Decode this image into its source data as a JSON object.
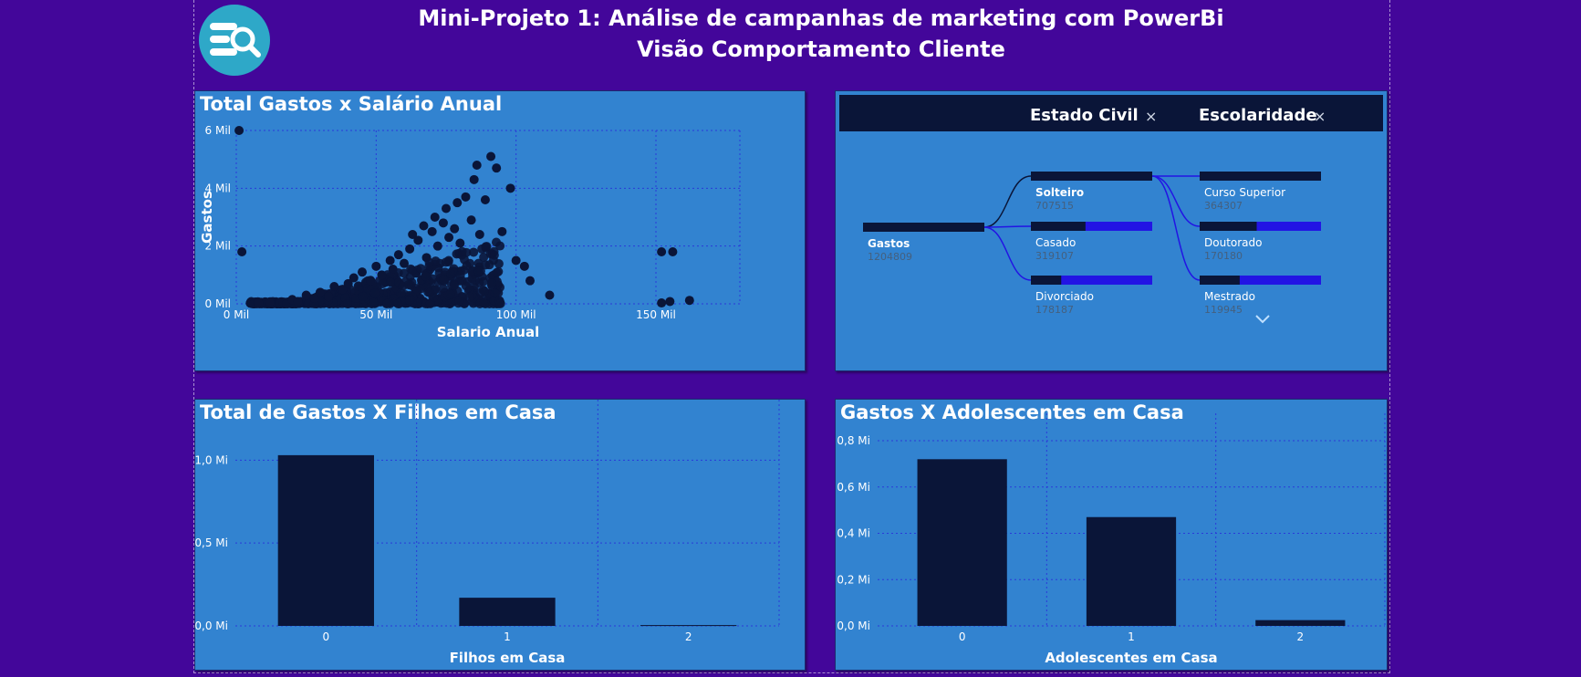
{
  "header": {
    "title_line1": "Mini-Projeto 1: Análise de campanhas de marketing com PowerBi",
    "title_line2": "Visão Comportamento Cliente",
    "logo_icon": "search-list-icon"
  },
  "colors": {
    "page_bg": "#43069a",
    "panel_bg": "#3283d0",
    "dark_navy": "#0a1538",
    "accent_blue": "#2214e4",
    "grid": "#2a3ad8"
  },
  "scatter": {
    "title": "Total Gastos x Salário Anual",
    "chart_data": {
      "type": "scatter",
      "title": "Total Gastos x Salário Anual",
      "xlabel": "Salario Anual",
      "ylabel": "Gastos",
      "xlim": [
        0,
        180000
      ],
      "ylim": [
        0,
        6000
      ],
      "x_ticks": [
        "0 Mil",
        "50 Mil",
        "100 Mil",
        "150 Mil"
      ],
      "y_ticks": [
        "0 Mil",
        "2 Mil",
        "4 Mil",
        "6 Mil"
      ],
      "x_tick_values": [
        0,
        50000,
        100000,
        150000
      ],
      "y_tick_values": [
        0,
        2000,
        4000,
        6000
      ],
      "grid": true,
      "points": [
        [
          2000,
          1800
        ],
        [
          1000,
          6000
        ],
        [
          8000,
          30
        ],
        [
          12000,
          60
        ],
        [
          20000,
          150
        ],
        [
          22000,
          80
        ],
        [
          25000,
          300
        ],
        [
          28000,
          200
        ],
        [
          30000,
          400
        ],
        [
          33000,
          250
        ],
        [
          35000,
          600
        ],
        [
          38000,
          500
        ],
        [
          40000,
          700
        ],
        [
          42000,
          900
        ],
        [
          45000,
          1100
        ],
        [
          48000,
          800
        ],
        [
          50000,
          1300
        ],
        [
          52000,
          1000
        ],
        [
          55000,
          1500
        ],
        [
          56000,
          1200
        ],
        [
          58000,
          1700
        ],
        [
          60000,
          1400
        ],
        [
          62000,
          1900
        ],
        [
          63000,
          2400
        ],
        [
          65000,
          2200
        ],
        [
          67000,
          2700
        ],
        [
          68000,
          1600
        ],
        [
          70000,
          2500
        ],
        [
          71000,
          3000
        ],
        [
          72000,
          2000
        ],
        [
          74000,
          2800
        ],
        [
          75000,
          3300
        ],
        [
          76000,
          2300
        ],
        [
          78000,
          2600
        ],
        [
          79000,
          3500
        ],
        [
          80000,
          2100
        ],
        [
          82000,
          3700
        ],
        [
          84000,
          2900
        ],
        [
          85000,
          4300
        ],
        [
          86000,
          4800
        ],
        [
          87000,
          2400
        ],
        [
          89000,
          3600
        ],
        [
          91000,
          5100
        ],
        [
          93000,
          4700
        ],
        [
          95000,
          2500
        ],
        [
          98000,
          4000
        ],
        [
          100000,
          1500
        ],
        [
          103000,
          1300
        ],
        [
          105000,
          800
        ],
        [
          112000,
          300
        ],
        [
          152000,
          1800
        ],
        [
          156000,
          1800
        ],
        [
          152000,
          30
        ],
        [
          155000,
          80
        ],
        [
          162000,
          120
        ]
      ]
    }
  },
  "decomp": {
    "header_levels": [
      {
        "label": "Estado Civil",
        "close": "×"
      },
      {
        "label": "Escolaridade",
        "close": "×"
      }
    ],
    "root": {
      "label": "Gastos",
      "value": "1204809",
      "fraction": 1.0
    },
    "level1": [
      {
        "label": "Solteiro",
        "value": "707515",
        "fraction": 1.0,
        "bold": true
      },
      {
        "label": "Casado",
        "value": "319107",
        "fraction": 0.45
      },
      {
        "label": "Divorciado",
        "value": "178187",
        "fraction": 0.25
      }
    ],
    "level2": [
      {
        "label": "Curso Superior",
        "value": "364307",
        "fraction": 1.0
      },
      {
        "label": "Doutorado",
        "value": "170180",
        "fraction": 0.47
      },
      {
        "label": "Mestrado",
        "value": "119945",
        "fraction": 0.33
      }
    ],
    "more_icon": "chevron-down-icon"
  },
  "filhos": {
    "title": "Total de Gastos X Filhos em Casa",
    "chart_data": {
      "type": "bar",
      "title": "Total de Gastos X Filhos em Casa",
      "categories": [
        "0",
        "1",
        "2"
      ],
      "values": [
        1.03,
        0.17,
        0.005
      ],
      "xlabel": "Filhos em Casa",
      "ylabel": "",
      "ylim": [
        0,
        1.2
      ],
      "y_ticks": [
        "0,0 Mi",
        "0,5 Mi",
        "1,0 Mi"
      ],
      "y_tick_values": [
        0,
        0.5,
        1.0
      ],
      "grid": true
    }
  },
  "adolescentes": {
    "title": "Gastos X Adolescentes em Casa",
    "chart_data": {
      "type": "bar",
      "title": "Gastos X Adolescentes em Casa",
      "categories": [
        "0",
        "1",
        "2"
      ],
      "values": [
        0.72,
        0.47,
        0.025
      ],
      "xlabel": "Adolescentes em Casa",
      "ylabel": "",
      "ylim": [
        0,
        0.8
      ],
      "y_ticks": [
        "0,0 Mi",
        "0,2 Mi",
        "0,4 Mi",
        "0,6 Mi",
        "0,8 Mi"
      ],
      "y_tick_values": [
        0,
        0.2,
        0.4,
        0.6,
        0.8
      ],
      "grid": true
    }
  }
}
